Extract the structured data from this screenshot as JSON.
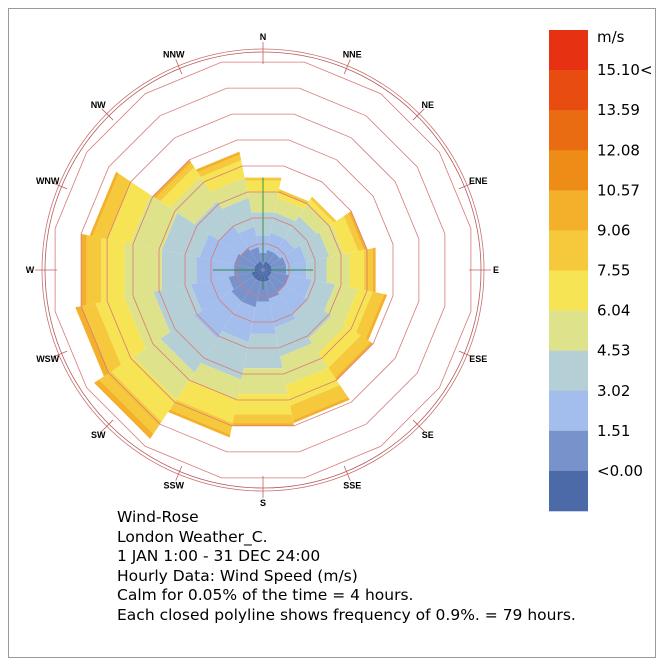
{
  "info": {
    "line1": "Wind-Rose",
    "line2": "London Weather_C.",
    "line3": "1 JAN 1:00 - 31 DEC 24:00",
    "line4": "Hourly Data: Wind Speed (m/s)",
    "line5": "Calm for 0.05% of the time = 4 hours.",
    "line6": "Each closed polyline shows frequency of 0.9%. = 79 hours."
  },
  "legend": {
    "unit": "m/s",
    "labels": [
      "15.10<",
      "13.59",
      "12.08",
      "10.57",
      "9.06",
      "7.55",
      "6.04",
      "4.53",
      "3.02",
      "1.51",
      "<0.00"
    ],
    "colors": [
      "#e63212",
      "#e84c10",
      "#ea6c12",
      "#ee8c18",
      "#f4b02a",
      "#f6c83c",
      "#f7e455",
      "#dee28a",
      "#b5cfd6",
      "#a3bdec",
      "#7892cc",
      "#4d6aa8"
    ]
  },
  "chart_data": {
    "type": "wind-rose",
    "directions": [
      "N",
      "NNE",
      "NE",
      "ENE",
      "E",
      "ESE",
      "SE",
      "SSE",
      "S",
      "SSW",
      "SW",
      "WSW",
      "W",
      "WNW",
      "NW",
      "NNW"
    ],
    "ring_frequency_percent": 0.9,
    "ring_count": 8,
    "speed_bins": [
      "<0.00",
      "1.51",
      "3.02",
      "4.53",
      "6.04",
      "7.55",
      "9.06",
      "10.57",
      "12.08",
      "13.59",
      "15.10<"
    ],
    "frequency_percent_by_direction": {
      "N": [
        0.2,
        0.6,
        1.2,
        2.0,
        2.7,
        3.1,
        3.2,
        3.2,
        3.2,
        3.2,
        3.2
      ],
      "NNE": [
        0.3,
        0.7,
        1.3,
        2.0,
        2.5,
        2.7,
        2.8,
        2.8,
        2.8,
        2.8,
        2.8
      ],
      "NE": [
        0.3,
        0.7,
        1.3,
        2.2,
        2.7,
        2.9,
        3.0,
        3.0,
        3.0,
        3.0,
        3.0
      ],
      "ENE": [
        0.3,
        0.8,
        1.5,
        2.3,
        2.8,
        3.3,
        3.5,
        3.6,
        3.6,
        3.6,
        3.6
      ],
      "E": [
        0.3,
        0.8,
        1.5,
        2.2,
        3.0,
        3.5,
        3.8,
        3.9,
        3.9,
        3.9,
        3.9
      ],
      "ESE": [
        0.3,
        0.9,
        1.7,
        2.5,
        3.3,
        3.8,
        4.2,
        4.3,
        4.3,
        4.3,
        4.3
      ],
      "SE": [
        0.3,
        0.9,
        1.8,
        2.8,
        3.4,
        4.0,
        4.4,
        4.5,
        4.5,
        4.5,
        4.5
      ],
      "SSE": [
        0.4,
        1.0,
        2.0,
        3.0,
        4.0,
        4.7,
        5.2,
        5.3,
        5.3,
        5.3,
        5.3
      ],
      "S": [
        0.4,
        1.1,
        2.2,
        3.4,
        4.3,
        5.0,
        5.3,
        5.4,
        5.4,
        5.4,
        5.4
      ],
      "SSW": [
        0.4,
        1.3,
        2.5,
        3.8,
        4.5,
        5.3,
        5.7,
        5.8,
        5.8,
        5.8,
        5.8
      ],
      "SW": [
        0.4,
        1.3,
        2.8,
        4.2,
        5.3,
        6.2,
        6.7,
        6.9,
        6.9,
        6.9,
        6.9
      ],
      "WSW": [
        0.4,
        1.2,
        2.5,
        3.8,
        4.8,
        5.8,
        6.3,
        6.5,
        6.5,
        6.5,
        6.5
      ],
      "W": [
        0.3,
        1.0,
        2.3,
        3.5,
        4.8,
        5.6,
        6.1,
        6.3,
        6.3,
        6.3,
        6.3
      ],
      "WNW": [
        0.3,
        1.0,
        2.2,
        3.5,
        4.6,
        5.4,
        5.9,
        6.0,
        6.0,
        6.0,
        6.0
      ],
      "NW": [
        0.3,
        0.9,
        1.8,
        2.8,
        3.8,
        4.2,
        4.4,
        4.5,
        4.5,
        4.5,
        4.5
      ],
      "NNW": [
        0.3,
        0.8,
        1.5,
        2.5,
        3.2,
        3.8,
        4.0,
        4.1,
        4.1,
        4.1,
        4.1
      ]
    }
  }
}
